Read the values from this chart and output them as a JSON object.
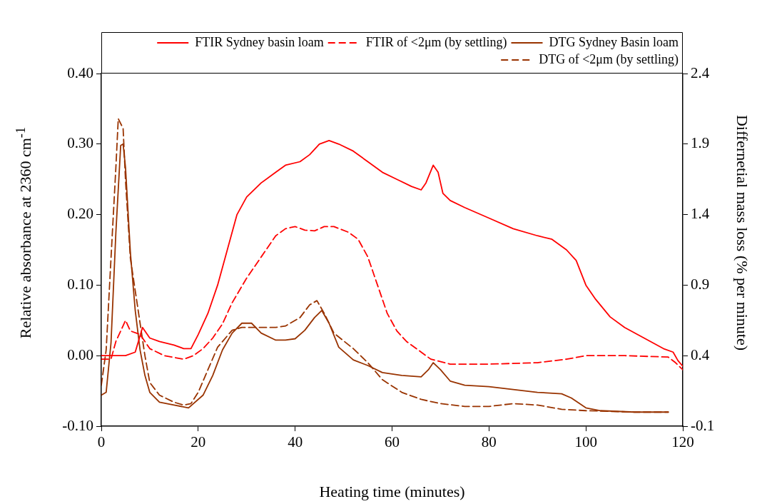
{
  "chart_data": {
    "type": "line",
    "xlabel": "Heating time (minutes)",
    "ylabel": "Relative absorbance at 2360 cm$^{-1}$",
    "y2label": "Differnetial mass loss (% per minute)",
    "xlim": [
      0,
      120
    ],
    "xticks": [
      0,
      20,
      40,
      60,
      80,
      100,
      120
    ],
    "ylim": [
      -0.1,
      0.4
    ],
    "yticks": [
      {
        "value": -0.1,
        "label": "-0.10"
      },
      {
        "value": 0,
        "label": "0.00"
      },
      {
        "value": 0.1,
        "label": "0.10"
      },
      {
        "value": 0.2,
        "label": "0.20"
      },
      {
        "value": 0.3,
        "label": "0.30"
      },
      {
        "value": 0.4,
        "label": "0.40"
      }
    ],
    "y2lim": [
      -0.1,
      2.4
    ],
    "y2ticks": [
      -0.1,
      0.4,
      0.9,
      1.4,
      1.9,
      2.4
    ],
    "grid": false,
    "legend": "top right",
    "marker": "none",
    "series": [
      {
        "name": "FTIR Sydney basin loam",
        "color": "#ff0000",
        "line_style": "solid",
        "x": [
          0,
          5,
          7,
          8.5,
          10,
          12,
          15,
          17,
          18.5,
          20,
          22,
          24,
          26,
          28,
          30,
          33,
          36,
          38,
          41,
          43,
          45,
          47,
          49,
          52,
          55,
          58,
          61,
          64,
          66,
          67,
          68.5,
          69.5,
          70.5,
          72,
          75,
          80,
          85,
          90,
          93,
          96,
          98,
          100,
          102,
          105,
          108,
          112,
          116,
          118,
          119,
          120
        ],
        "values": [
          0,
          0,
          0.005,
          0.04,
          0.025,
          0.02,
          0.015,
          0.01,
          0.01,
          0.03,
          0.06,
          0.1,
          0.15,
          0.2,
          0.225,
          0.245,
          0.26,
          0.27,
          0.275,
          0.285,
          0.3,
          0.305,
          0.3,
          0.29,
          0.275,
          0.26,
          0.25,
          0.24,
          0.235,
          0.245,
          0.27,
          0.26,
          0.23,
          0.22,
          0.21,
          0.195,
          0.18,
          0.17,
          0.165,
          0.15,
          0.135,
          0.1,
          0.08,
          0.055,
          0.04,
          0.025,
          0.01,
          0.005,
          -0.007,
          -0.015
        ]
      },
      {
        "name": "FTIR of <2μm (by settling)",
        "color": "#ff0000",
        "line_style": "dashed",
        "x": [
          0,
          2,
          3,
          5,
          6,
          8,
          10,
          13,
          17,
          19,
          21,
          23,
          25,
          27,
          30,
          33,
          36,
          38,
          40,
          42,
          44,
          46,
          48,
          51,
          53,
          55,
          57,
          59,
          61,
          63,
          65,
          68,
          72,
          80,
          90,
          96,
          100,
          108,
          117,
          118.5,
          120
        ],
        "values": [
          -0.005,
          -0.005,
          0.02,
          0.05,
          0.035,
          0.03,
          0.01,
          0,
          -0.005,
          0,
          0.01,
          0.025,
          0.045,
          0.075,
          0.11,
          0.14,
          0.17,
          0.18,
          0.183,
          0.178,
          0.177,
          0.183,
          0.183,
          0.175,
          0.165,
          0.14,
          0.1,
          0.06,
          0.035,
          0.02,
          0.01,
          -0.005,
          -0.012,
          -0.012,
          -0.01,
          -0.005,
          0,
          0,
          -0.002,
          -0.01,
          -0.02
        ]
      },
      {
        "name": "DTG Sydney Basin loam",
        "color": "#993300",
        "line_style": "solid",
        "axis": "y2",
        "x": [
          0,
          1,
          2,
          3,
          4,
          4.5,
          5,
          6,
          7,
          8,
          9,
          10,
          12,
          15,
          18,
          21,
          23,
          25,
          27,
          29,
          31,
          33,
          36,
          38,
          40,
          42,
          44,
          45.5,
          47,
          49,
          52,
          55,
          58,
          62,
          66,
          67.5,
          68.5,
          70,
          72,
          75,
          80,
          85,
          90,
          95,
          97,
          100,
          103,
          110,
          117
        ],
        "values": [
          0.12,
          0.14,
          0.49,
          1.27,
          1.89,
          1.9,
          1.73,
          1.13,
          0.72,
          0.44,
          0.26,
          0.14,
          0.07,
          0.05,
          0.03,
          0.12,
          0.26,
          0.44,
          0.56,
          0.63,
          0.63,
          0.56,
          0.51,
          0.51,
          0.52,
          0.58,
          0.67,
          0.72,
          0.63,
          0.46,
          0.37,
          0.33,
          0.28,
          0.26,
          0.25,
          0.3,
          0.35,
          0.3,
          0.22,
          0.19,
          0.18,
          0.16,
          0.14,
          0.13,
          0.1,
          0.03,
          0.01,
          0,
          0
        ]
      },
      {
        "name": "DTG of <2μm (by settling)",
        "color": "#993300",
        "line_style": "dashed",
        "axis": "y2",
        "x": [
          0,
          1,
          2,
          3,
          3.5,
          4.5,
          5,
          6,
          7,
          8,
          9,
          10,
          12,
          15,
          17,
          18.5,
          20,
          22,
          24,
          27,
          29,
          32,
          36,
          38,
          41,
          43,
          44.5,
          46,
          48,
          52,
          55,
          58,
          62,
          66,
          70,
          75,
          80,
          85,
          90,
          95,
          100,
          110,
          117
        ],
        "values": [
          0.19,
          0.44,
          1.09,
          1.73,
          2.08,
          2.01,
          1.64,
          1.09,
          0.86,
          0.63,
          0.4,
          0.21,
          0.12,
          0.07,
          0.05,
          0.06,
          0.14,
          0.3,
          0.46,
          0.58,
          0.6,
          0.6,
          0.6,
          0.61,
          0.67,
          0.76,
          0.79,
          0.7,
          0.56,
          0.45,
          0.35,
          0.23,
          0.14,
          0.09,
          0.06,
          0.04,
          0.04,
          0.06,
          0.05,
          0.02,
          0.01,
          0,
          0
        ]
      }
    ]
  }
}
